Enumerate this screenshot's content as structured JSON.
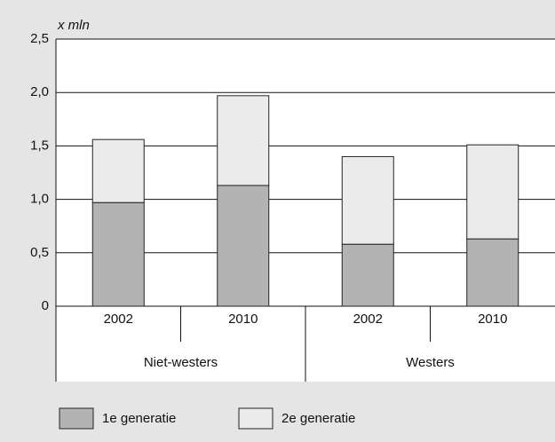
{
  "chart_data": {
    "type": "stacked_bar",
    "ylabel": "x mln",
    "categories": [
      "2002",
      "2010",
      "2002",
      "2010"
    ],
    "groups": [
      "Niet-westers",
      "Westers"
    ],
    "series": [
      {
        "name": "1e generatie",
        "color": "#b3b3b3",
        "values": [
          0.97,
          1.13,
          0.58,
          0.63
        ]
      },
      {
        "name": "2e generatie",
        "color": "#ebebeb",
        "values": [
          0.59,
          0.84,
          0.82,
          0.88
        ]
      }
    ],
    "ylim": [
      0,
      2.5
    ],
    "yticks": [
      0,
      {
        "value": 0.5,
        "label": "0,5"
      },
      {
        "value": 1,
        "label": "1,0"
      },
      {
        "value": 1.5,
        "label": "1,5"
      },
      {
        "value": 2,
        "label": "2,0"
      },
      {
        "value": 2.5,
        "label": "2,5"
      }
    ],
    "grid": true
  }
}
